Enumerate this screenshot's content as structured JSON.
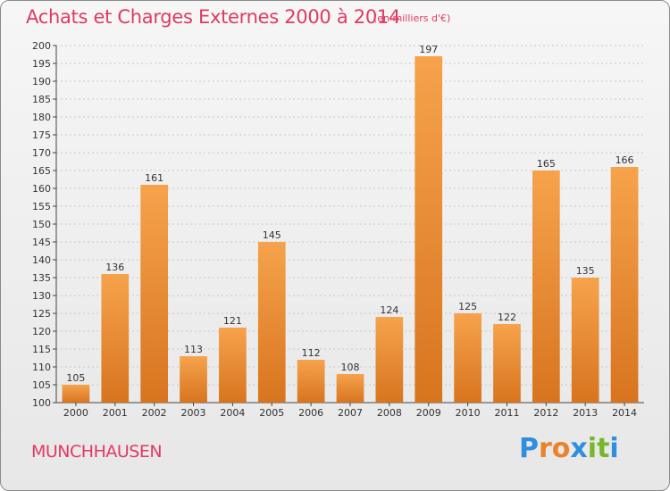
{
  "header": {
    "title": "Achats et Charges Externes 2000 à 2014",
    "unit": "(en milliers d'€)"
  },
  "footer": {
    "commune": "MUNCHHAUSEN",
    "brand": "Proxiti",
    "brand_colors": [
      "#2f8fdc",
      "#e9822a",
      "#e9822a",
      "#2f8fdc",
      "#77b82a",
      "#77b82a"
    ]
  },
  "colors": {
    "bar_top": "#f6a34c",
    "bar_bottom": "#d8741f",
    "accent": "#e03a63",
    "axis": "#444444",
    "grid": "#c8c8c8"
  },
  "chart_data": {
    "type": "bar",
    "categories": [
      "2000",
      "2001",
      "2002",
      "2003",
      "2004",
      "2005",
      "2006",
      "2007",
      "2008",
      "2009",
      "2010",
      "2011",
      "2012",
      "2013",
      "2014"
    ],
    "values": [
      105,
      136,
      161,
      113,
      121,
      145,
      112,
      108,
      124,
      197,
      125,
      122,
      165,
      135,
      166
    ],
    "data_labels": [
      "105",
      "136",
      "161",
      "113",
      "121",
      "145",
      "112",
      "108",
      "124",
      "197",
      "125",
      "122",
      "165",
      "135",
      "166"
    ],
    "ylim": [
      100,
      200
    ],
    "ytick_step": 5,
    "yticks": [
      "100",
      "105",
      "110",
      "115",
      "120",
      "125",
      "130",
      "135",
      "140",
      "145",
      "150",
      "155",
      "160",
      "165",
      "170",
      "175",
      "180",
      "185",
      "190",
      "195",
      "200"
    ],
    "grid": true,
    "legend": "none"
  }
}
